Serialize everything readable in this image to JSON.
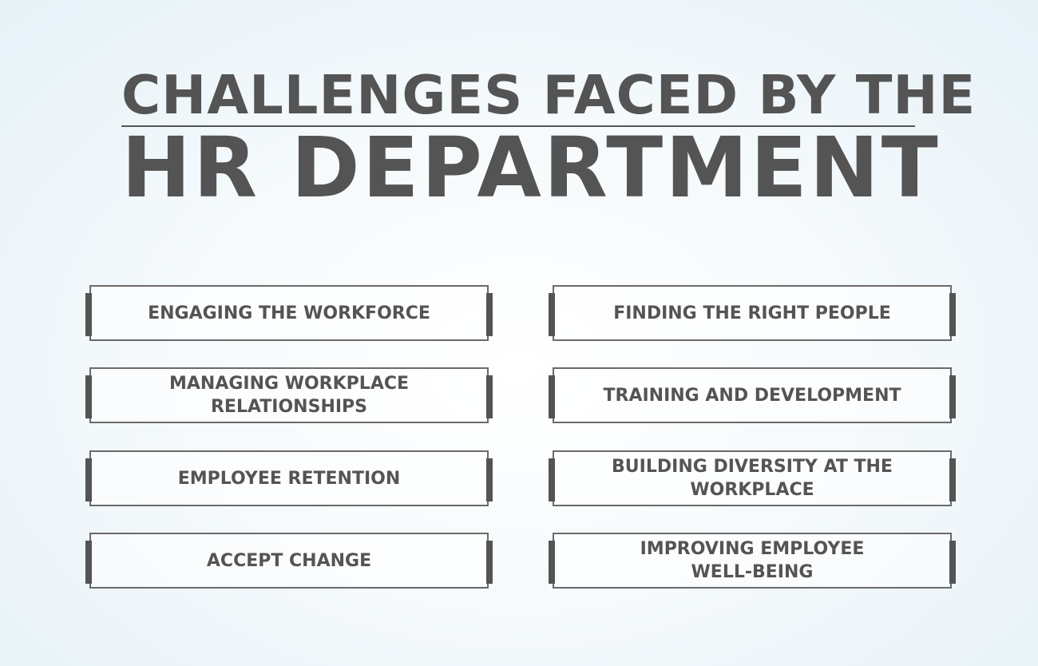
{
  "title": {
    "line1": "CHALLENGES FACED BY THE",
    "line2": "HR DEPARTMENT"
  },
  "colors": {
    "text": "#545454",
    "border": "#6a6a6a",
    "background": "#f3f8fb"
  },
  "challenges": {
    "left": [
      "ENGAGING THE WORKFORCE",
      "MANAGING WORKPLACE RELATIONSHIPS",
      "EMPLOYEE RETENTION",
      "ACCEPT CHANGE"
    ],
    "right": [
      "FINDING THE RIGHT PEOPLE",
      "TRAINING AND DEVELOPMENT",
      "BUILDING DIVERSITY AT THE WORKPLACE",
      "IMPROVING EMPLOYEE WELL-BEING"
    ]
  }
}
